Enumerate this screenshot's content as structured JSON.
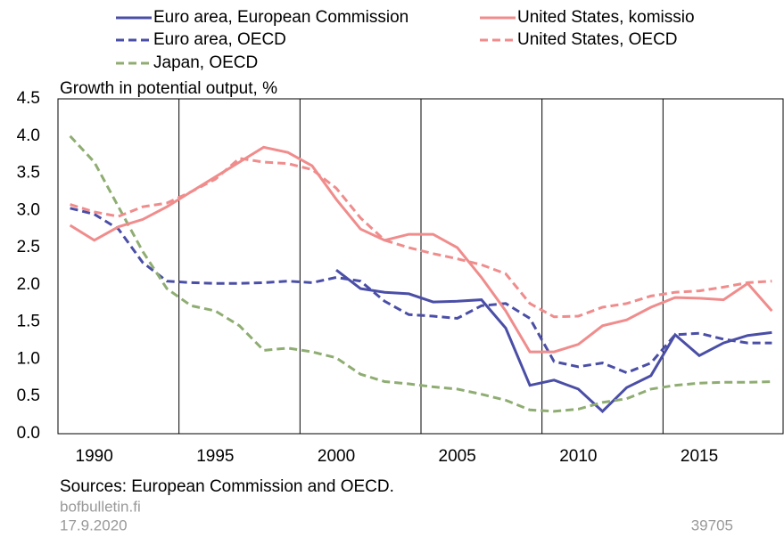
{
  "chart_data": {
    "type": "line",
    "y_label": "Growth in potential output, %",
    "source": "Sources: European Commission and OECD.",
    "site": "bofbulletin.fi",
    "date": "17.9.2020",
    "code": "39705",
    "x": [
      1989,
      1990,
      1991,
      1992,
      1993,
      1994,
      1995,
      1996,
      1997,
      1998,
      1999,
      2000,
      2001,
      2002,
      2003,
      2004,
      2005,
      2006,
      2007,
      2008,
      2009,
      2010,
      2011,
      2012,
      2013,
      2014,
      2015,
      2016,
      2017,
      2018
    ],
    "xlim": [
      1988.5,
      2018.5
    ],
    "xticks": [
      1990,
      1995,
      2000,
      2005,
      2010,
      2015
    ],
    "x_gridlines": [
      1988.5,
      1993.5,
      1998.5,
      2003.5,
      2008.5,
      2013.5
    ],
    "ylim": [
      0,
      4.5
    ],
    "yticks": [
      {
        "value": 0,
        "label": "0.0"
      },
      0.5,
      {
        "value": 1,
        "label": "1.0"
      },
      1.5,
      {
        "value": 2,
        "label": "2.0"
      },
      2.5,
      {
        "value": 3,
        "label": "3.0"
      },
      3.5,
      {
        "value": 4,
        "label": "4.0"
      },
      4.5
    ],
    "series": [
      {
        "name": "Euro area, European Commission",
        "color": "#4a4ea6",
        "dashed": false,
        "values": [
          null,
          null,
          null,
          null,
          null,
          null,
          null,
          null,
          null,
          null,
          null,
          2.2,
          1.95,
          1.9,
          1.88,
          1.77,
          1.78,
          1.8,
          1.42,
          0.65,
          0.72,
          0.6,
          0.3,
          0.62,
          0.78,
          1.33,
          1.05,
          1.22,
          1.32,
          1.36
        ]
      },
      {
        "name": "Euro area, OECD",
        "color": "#4a4ea6",
        "dashed": true,
        "values": [
          3.03,
          2.95,
          2.75,
          2.3,
          2.05,
          2.03,
          2.02,
          2.02,
          2.03,
          2.05,
          2.03,
          2.1,
          2.05,
          1.78,
          1.6,
          1.58,
          1.55,
          1.72,
          1.75,
          1.55,
          0.97,
          0.9,
          0.95,
          0.82,
          0.95,
          1.33,
          1.35,
          1.27,
          1.22,
          1.22
        ]
      },
      {
        "name": "Japan, OECD",
        "color": "#8fad72",
        "dashed": true,
        "values": [
          4.0,
          3.65,
          3.05,
          2.45,
          1.95,
          1.72,
          1.65,
          1.45,
          1.12,
          1.15,
          1.1,
          1.02,
          0.8,
          0.7,
          0.67,
          0.63,
          0.6,
          0.53,
          0.45,
          0.32,
          0.3,
          0.33,
          0.42,
          0.47,
          0.6,
          0.65,
          0.68,
          0.69,
          0.69,
          0.7
        ]
      },
      {
        "name": "United States, komissio",
        "color": "#f08c8c",
        "dashed": false,
        "values": [
          2.8,
          2.6,
          2.78,
          2.88,
          3.05,
          3.25,
          3.45,
          3.65,
          3.85,
          3.78,
          3.6,
          3.15,
          2.75,
          2.6,
          2.68,
          2.68,
          2.5,
          2.1,
          1.65,
          1.1,
          1.1,
          1.2,
          1.45,
          1.53,
          1.7,
          1.83,
          1.82,
          1.8,
          2.02,
          1.65
        ]
      },
      {
        "name": "United States, OECD",
        "color": "#f08c8c",
        "dashed": true,
        "values": [
          3.08,
          2.98,
          2.92,
          3.05,
          3.1,
          3.25,
          3.42,
          3.7,
          3.65,
          3.63,
          3.55,
          3.3,
          2.9,
          2.6,
          2.5,
          2.42,
          2.35,
          2.27,
          2.15,
          1.75,
          1.57,
          1.58,
          1.7,
          1.75,
          1.85,
          1.9,
          1.92,
          1.97,
          2.03,
          2.05
        ]
      }
    ]
  }
}
